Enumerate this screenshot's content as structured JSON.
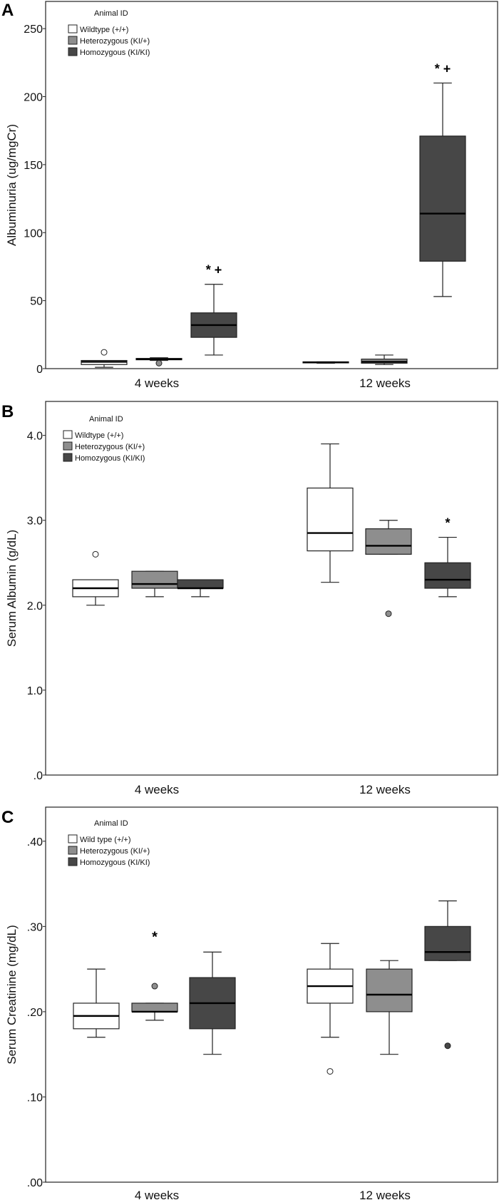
{
  "colors": {
    "wildtype": "#ffffff",
    "heterozygous": "#8e8e8e",
    "homozygous": "#474747",
    "outlier_star_grey": "#9a9a9a"
  },
  "chart_data": [
    {
      "panel": "A",
      "type": "box",
      "ylabel": "Albuminuria (ug/mgCr)",
      "ylim": [
        0,
        270
      ],
      "yticks": [
        0,
        50,
        100,
        150,
        200,
        250
      ],
      "ytick_labels": [
        "0",
        "50",
        "100",
        "150",
        "200",
        "250"
      ],
      "categories": [
        "4 weeks",
        "12 weeks"
      ],
      "legend": {
        "title": "Animal ID",
        "entries": [
          "Wildtype (+/+)",
          "Heterozygous (KI/+)",
          "Homozygous (KI/KI)"
        ]
      },
      "series": [
        {
          "name": "Wildtype (+/+)",
          "key": "wildtype",
          "boxes": [
            {
              "whisker_low": 1,
              "q1": 3,
              "median": 5,
              "q3": 6,
              "whisker_high": 6,
              "outliers": [
                {
                  "value": 12,
                  "marker": "circle"
                }
              ]
            },
            {
              "whisker_low": 4,
              "q1": 4.3,
              "median": 4.6,
              "q3": 5,
              "whisker_high": 5,
              "outliers": []
            }
          ]
        },
        {
          "name": "Heterozygous (KI/+)",
          "key": "heterozygous",
          "boxes": [
            {
              "whisker_low": 6,
              "q1": 6.5,
              "median": 7,
              "q3": 7.5,
              "whisker_high": 8,
              "outliers": [
                {
                  "value": 4,
                  "marker": "circle"
                }
              ]
            },
            {
              "whisker_low": 3,
              "q1": 4,
              "median": 5,
              "q3": 7,
              "whisker_high": 10,
              "outliers": []
            }
          ]
        },
        {
          "name": "Homozygous (KI/KI)",
          "key": "homozygous",
          "boxes": [
            {
              "whisker_low": 10,
              "q1": 23,
              "median": 32,
              "q3": 41,
              "whisker_high": 62,
              "outliers": [],
              "annotation": "* +"
            },
            {
              "whisker_low": 53,
              "q1": 79,
              "median": 114,
              "q3": 171,
              "whisker_high": 210,
              "outliers": [],
              "annotation": "* +"
            }
          ]
        }
      ]
    },
    {
      "panel": "B",
      "type": "box",
      "ylabel": "Serum Albumin (g/dL)",
      "ylim": [
        0,
        4.4
      ],
      "yticks": [
        0,
        1,
        2,
        3,
        4
      ],
      "ytick_labels": [
        ".0",
        "1.0",
        "2.0",
        "3.0",
        "4.0"
      ],
      "categories": [
        "4 weeks",
        "12 weeks"
      ],
      "legend": {
        "title": "Animal ID",
        "entries": [
          "Wildtype (+/+)",
          "Heterozygous (KI/+)",
          "Homozygous (KI/KI)"
        ]
      },
      "series": [
        {
          "name": "Wildtype (+/+)",
          "key": "wildtype",
          "boxes": [
            {
              "whisker_low": 2.0,
              "q1": 2.1,
              "median": 2.2,
              "q3": 2.3,
              "whisker_high": 2.3,
              "outliers": [
                {
                  "value": 2.6,
                  "marker": "circle"
                }
              ]
            },
            {
              "whisker_low": 2.27,
              "q1": 2.64,
              "median": 2.85,
              "q3": 3.38,
              "whisker_high": 3.9,
              "outliers": []
            }
          ]
        },
        {
          "name": "Heterozygous (KI/+)",
          "key": "heterozygous",
          "boxes": [
            {
              "whisker_low": 2.1,
              "q1": 2.2,
              "median": 2.25,
              "q3": 2.4,
              "whisker_high": 2.4,
              "outliers": []
            },
            {
              "whisker_low": 2.6,
              "q1": 2.6,
              "median": 2.7,
              "q3": 2.9,
              "whisker_high": 3.0,
              "outliers": [
                {
                  "value": 1.9,
                  "marker": "circle"
                }
              ]
            }
          ]
        },
        {
          "name": "Homozygous (KI/KI)",
          "key": "homozygous",
          "boxes": [
            {
              "whisker_low": 2.1,
              "q1": 2.2,
              "median": 2.2,
              "q3": 2.3,
              "whisker_high": 2.3,
              "outliers": []
            },
            {
              "whisker_low": 2.1,
              "q1": 2.2,
              "median": 2.3,
              "q3": 2.5,
              "whisker_high": 2.8,
              "outliers": [],
              "annotation": "*"
            }
          ]
        }
      ]
    },
    {
      "panel": "C",
      "type": "box",
      "ylabel": "Serum Creatinine (mg/dL)",
      "ylim": [
        0,
        0.44
      ],
      "yticks": [
        0,
        0.1,
        0.2,
        0.3,
        0.4
      ],
      "ytick_labels": [
        ".00",
        ".10",
        ".20",
        ".30",
        ".40"
      ],
      "categories": [
        "4 weeks",
        "12 weeks"
      ],
      "legend": {
        "title": "Animal ID",
        "entries": [
          "Wild type (+/+)",
          "Heterozygous (KI/+)",
          "Homozygous (KI/KI)"
        ]
      },
      "series": [
        {
          "name": "Wild type (+/+)",
          "key": "wildtype",
          "boxes": [
            {
              "whisker_low": 0.17,
              "q1": 0.18,
              "median": 0.195,
              "q3": 0.21,
              "whisker_high": 0.25,
              "outliers": []
            },
            {
              "whisker_low": 0.17,
              "q1": 0.21,
              "median": 0.23,
              "q3": 0.25,
              "whisker_high": 0.28,
              "outliers": [
                {
                  "value": 0.13,
                  "marker": "circle"
                }
              ]
            }
          ]
        },
        {
          "name": "Heterozygous (KI/+)",
          "key": "heterozygous",
          "boxes": [
            {
              "whisker_low": 0.19,
              "q1": 0.2,
              "median": 0.2,
              "q3": 0.21,
              "whisker_high": 0.21,
              "outliers": [
                {
                  "value": 0.23,
                  "marker": "circle"
                },
                {
                  "value": 0.29,
                  "marker": "star"
                }
              ]
            },
            {
              "whisker_low": 0.15,
              "q1": 0.2,
              "median": 0.22,
              "q3": 0.25,
              "whisker_high": 0.26,
              "outliers": []
            }
          ]
        },
        {
          "name": "Homozygous (KI/KI)",
          "key": "homozygous",
          "boxes": [
            {
              "whisker_low": 0.15,
              "q1": 0.18,
              "median": 0.21,
              "q3": 0.24,
              "whisker_high": 0.27,
              "outliers": []
            },
            {
              "whisker_low": 0.26,
              "q1": 0.26,
              "median": 0.27,
              "q3": 0.3,
              "whisker_high": 0.33,
              "outliers": [
                {
                  "value": 0.16,
                  "marker": "circle"
                }
              ]
            }
          ]
        }
      ]
    }
  ]
}
